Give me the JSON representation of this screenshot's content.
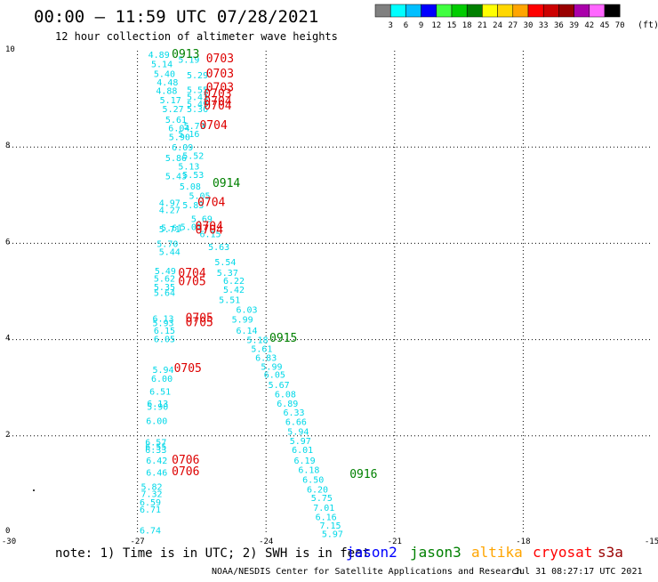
{
  "header": {
    "title": "00:00 – 11:59 UTC 07/28/2021",
    "subtitle": "12 hour collection of altimeter wave heights"
  },
  "colorbar": {
    "unit": "(ft)",
    "bins": [
      {
        "color": "#808080",
        "label": "3"
      },
      {
        "color": "#00ffff",
        "label": "6"
      },
      {
        "color": "#00bfff",
        "label": "9"
      },
      {
        "color": "#0000ff",
        "label": "12"
      },
      {
        "color": "#40ff40",
        "label": "15"
      },
      {
        "color": "#00cc00",
        "label": "18"
      },
      {
        "color": "#008000",
        "label": "21"
      },
      {
        "color": "#ffff00",
        "label": "24"
      },
      {
        "color": "#ffd700",
        "label": "27"
      },
      {
        "color": "#ffa500",
        "label": "30"
      },
      {
        "color": "#ff0000",
        "label": "33"
      },
      {
        "color": "#cc0000",
        "label": "36"
      },
      {
        "color": "#990000",
        "label": "39"
      },
      {
        "color": "#aa00aa",
        "label": "42"
      },
      {
        "color": "#ff66ff",
        "label": "45"
      },
      {
        "color": "#000000",
        "label": "70"
      }
    ]
  },
  "footer": {
    "note": "note: 1) Time is in UTC; 2) SWH is in feet",
    "credit": "NOAA/NESDIS Center for Satellite Applications and Research",
    "timestamp": "Jul 31 08:27:17 UTC 2021"
  },
  "chart_data": {
    "type": "scatter",
    "title": "00:00 – 11:59 UTC 07/28/2021",
    "subtitle": "12 hour collection of altimeter wave heights",
    "xlim": [
      -30,
      -15
    ],
    "ylim": [
      0,
      10
    ],
    "xticks": [
      "-30",
      "-27",
      "-24",
      "-21",
      "-18",
      "-15"
    ],
    "yticks": [
      "0",
      "2",
      "4",
      "6",
      "8",
      "10"
    ],
    "grid": true,
    "legend": [
      {
        "name": "jason2",
        "color": "#0000ff"
      },
      {
        "name": "jason3",
        "color": "#008000"
      },
      {
        "name": "altika",
        "color": "#ffa500"
      },
      {
        "name": "cryosat",
        "color": "#ff0000"
      },
      {
        "name": "s3a",
        "color": "#990000"
      }
    ],
    "series": [
      {
        "name": "cryosat",
        "color": "#00d8e8",
        "points": [
          {
            "x": -26.75,
            "y": 9.93,
            "label": "4.89"
          },
          {
            "x": -26.68,
            "y": 9.73,
            "label": "5.14"
          },
          {
            "x": -26.62,
            "y": 9.53,
            "label": "5.40"
          },
          {
            "x": -26.55,
            "y": 9.35,
            "label": "4.48"
          },
          {
            "x": -26.57,
            "y": 9.18,
            "label": "4.88"
          },
          {
            "x": -26.48,
            "y": 8.98,
            "label": "5.17"
          },
          {
            "x": -26.42,
            "y": 8.8,
            "label": "5.27"
          },
          {
            "x": -26.35,
            "y": 8.58,
            "label": "5.61"
          },
          {
            "x": -26.28,
            "y": 8.4,
            "label": "6.04"
          },
          {
            "x": -26.27,
            "y": 8.22,
            "label": "5.90"
          },
          {
            "x": -26.2,
            "y": 8.0,
            "label": "6.09"
          },
          {
            "x": -26.35,
            "y": 7.78,
            "label": "5.86"
          },
          {
            "x": -26.05,
            "y": 7.61,
            "label": "5.13"
          },
          {
            "x": -26.35,
            "y": 7.4,
            "label": "5.43"
          },
          {
            "x": -26.02,
            "y": 7.19,
            "label": "5.08"
          },
          {
            "x": -25.8,
            "y": 7.0,
            "label": "5.05"
          },
          {
            "x": -26.5,
            "y": 6.85,
            "label": "4.97"
          },
          {
            "x": -26.5,
            "y": 6.7,
            "label": "4.27"
          },
          {
            "x": -25.75,
            "y": 6.52,
            "label": "5.69"
          },
          {
            "x": -26.45,
            "y": 6.33,
            "label": "5.61"
          },
          {
            "x": -25.55,
            "y": 6.2,
            "label": "6.15"
          },
          {
            "x": -26.55,
            "y": 6.0,
            "label": "5.70"
          },
          {
            "x": -25.35,
            "y": 5.93,
            "label": "5.63"
          },
          {
            "x": -26.5,
            "y": 5.83,
            "label": "5.44"
          },
          {
            "x": -25.2,
            "y": 5.62,
            "label": "5.54"
          },
          {
            "x": -25.15,
            "y": 5.4,
            "label": "5.37"
          },
          {
            "x": -26.6,
            "y": 5.43,
            "label": "5.49"
          },
          {
            "x": -26.62,
            "y": 5.28,
            "label": "5.62"
          },
          {
            "x": -25.0,
            "y": 5.23,
            "label": "6.22"
          },
          {
            "x": -26.62,
            "y": 5.1,
            "label": "5.35"
          },
          {
            "x": -25.0,
            "y": 5.05,
            "label": "5.42"
          },
          {
            "x": -26.62,
            "y": 4.98,
            "label": "5.64"
          },
          {
            "x": -25.1,
            "y": 4.83,
            "label": "5.51"
          },
          {
            "x": -24.7,
            "y": 4.63,
            "label": "6.03"
          },
          {
            "x": -26.65,
            "y": 4.45,
            "label": "6.13"
          },
          {
            "x": -24.8,
            "y": 4.43,
            "label": "5.99"
          },
          {
            "x": -26.65,
            "y": 4.35,
            "label": "5.93"
          },
          {
            "x": -26.62,
            "y": 4.2,
            "label": "6.15"
          },
          {
            "x": -24.7,
            "y": 4.2,
            "label": "6.14"
          },
          {
            "x": -26.62,
            "y": 4.02,
            "label": "6.05"
          },
          {
            "x": -24.45,
            "y": 4.0,
            "label": "5.18"
          },
          {
            "x": -24.35,
            "y": 3.82,
            "label": "5.61"
          },
          {
            "x": -24.25,
            "y": 3.63,
            "label": "6.83"
          },
          {
            "x": -24.12,
            "y": 3.45,
            "label": "5.99"
          },
          {
            "x": -26.65,
            "y": 3.38,
            "label": "5.94"
          },
          {
            "x": -24.05,
            "y": 3.28,
            "label": "6.05"
          },
          {
            "x": -26.68,
            "y": 3.2,
            "label": "6.00"
          },
          {
            "x": -23.95,
            "y": 3.07,
            "label": "5.67"
          },
          {
            "x": -26.72,
            "y": 2.93,
            "label": "6.51"
          },
          {
            "x": -23.8,
            "y": 2.87,
            "label": "6.08"
          },
          {
            "x": -26.78,
            "y": 2.68,
            "label": "6.13"
          },
          {
            "x": -26.78,
            "y": 2.62,
            "label": "5.90"
          },
          {
            "x": -23.75,
            "y": 2.68,
            "label": "6.89"
          },
          {
            "x": -23.6,
            "y": 2.5,
            "label": "6.33"
          },
          {
            "x": -26.8,
            "y": 2.32,
            "label": "6.00"
          },
          {
            "x": -23.55,
            "y": 2.3,
            "label": "6.66"
          },
          {
            "x": -23.5,
            "y": 2.1,
            "label": "5.94"
          },
          {
            "x": -26.82,
            "y": 1.88,
            "label": "6.57"
          },
          {
            "x": -23.45,
            "y": 1.9,
            "label": "5.97"
          },
          {
            "x": -26.82,
            "y": 1.78,
            "label": "6.55"
          },
          {
            "x": -26.82,
            "y": 1.72,
            "label": "6.33"
          },
          {
            "x": -23.4,
            "y": 1.72,
            "label": "6.01"
          },
          {
            "x": -26.8,
            "y": 1.5,
            "label": "6.42"
          },
          {
            "x": -23.35,
            "y": 1.5,
            "label": "6.19"
          },
          {
            "x": -23.25,
            "y": 1.3,
            "label": "6.18"
          },
          {
            "x": -26.8,
            "y": 1.25,
            "label": "6.46"
          },
          {
            "x": -23.15,
            "y": 1.1,
            "label": "6.50"
          },
          {
            "x": -23.05,
            "y": 0.9,
            "label": "6.20"
          },
          {
            "x": -26.92,
            "y": 0.95,
            "label": "5.82"
          },
          {
            "x": -26.92,
            "y": 0.8,
            "label": "7.32"
          },
          {
            "x": -22.95,
            "y": 0.72,
            "label": "5.75"
          },
          {
            "x": -26.95,
            "y": 0.63,
            "label": "6.59"
          },
          {
            "x": -22.9,
            "y": 0.52,
            "label": "7.01"
          },
          {
            "x": -26.95,
            "y": 0.48,
            "label": "6.71"
          },
          {
            "x": -22.85,
            "y": 0.32,
            "label": "6.16"
          },
          {
            "x": -22.75,
            "y": 0.15,
            "label": "7.15"
          },
          {
            "x": -22.7,
            "y": -0.03,
            "label": "5.97"
          },
          {
            "x": -26.95,
            "y": 0.05,
            "label": "6.74"
          },
          {
            "x": -26.05,
            "y": 9.82,
            "label": "5.19"
          },
          {
            "x": -25.85,
            "y": 9.5,
            "label": "5.29"
          },
          {
            "x": -25.85,
            "y": 9.2,
            "label": "5.55"
          },
          {
            "x": -25.85,
            "y": 9.05,
            "label": "5.43"
          },
          {
            "x": -25.85,
            "y": 8.9,
            "label": "5.49"
          },
          {
            "x": -25.85,
            "y": 8.8,
            "label": "5.36"
          },
          {
            "x": -25.92,
            "y": 8.45,
            "label": "5.79"
          },
          {
            "x": -26.05,
            "y": 8.28,
            "label": "5.16"
          },
          {
            "x": -25.95,
            "y": 7.83,
            "label": "5.52"
          },
          {
            "x": -25.95,
            "y": 7.43,
            "label": "5.53"
          },
          {
            "x": -25.95,
            "y": 6.8,
            "label": "5.83"
          },
          {
            "x": -26.0,
            "y": 6.35,
            "label": "5.01"
          },
          {
            "x": -26.5,
            "y": 6.3,
            "label": "5.71"
          }
        ]
      },
      {
        "name": "cryosat",
        "color": "#dd0000",
        "points": [
          {
            "x": -25.4,
            "y": 9.83,
            "label": "0703"
          },
          {
            "x": -25.4,
            "y": 9.52,
            "label": "0703"
          },
          {
            "x": -25.4,
            "y": 9.23,
            "label": "0703"
          },
          {
            "x": -25.45,
            "y": 9.1,
            "label": "0703"
          },
          {
            "x": -25.45,
            "y": 8.95,
            "label": "0704"
          },
          {
            "x": -25.45,
            "y": 8.85,
            "label": "0704"
          },
          {
            "x": -25.55,
            "y": 8.45,
            "label": "0704"
          },
          {
            "x": -25.6,
            "y": 6.85,
            "label": "0704"
          },
          {
            "x": -25.65,
            "y": 6.35,
            "label": "0704"
          },
          {
            "x": -25.65,
            "y": 6.28,
            "label": "0704"
          },
          {
            "x": -26.05,
            "y": 5.38,
            "label": "0704"
          },
          {
            "x": -26.05,
            "y": 5.2,
            "label": "0705"
          },
          {
            "x": -25.88,
            "y": 4.45,
            "label": "0705"
          },
          {
            "x": -25.88,
            "y": 4.35,
            "label": "0705"
          },
          {
            "x": -26.15,
            "y": 3.4,
            "label": "0705"
          },
          {
            "x": -26.2,
            "y": 1.5,
            "label": "0706"
          },
          {
            "x": -26.2,
            "y": 1.26,
            "label": "0706"
          }
        ]
      },
      {
        "name": "jason3",
        "color": "#008000",
        "points": [
          {
            "x": -26.2,
            "y": 9.93,
            "label": "0913"
          },
          {
            "x": -25.25,
            "y": 7.25,
            "label": "0914"
          },
          {
            "x": -23.92,
            "y": 4.03,
            "label": "0915"
          },
          {
            "x": -22.05,
            "y": 1.2,
            "label": "0916"
          }
        ]
      }
    ]
  }
}
